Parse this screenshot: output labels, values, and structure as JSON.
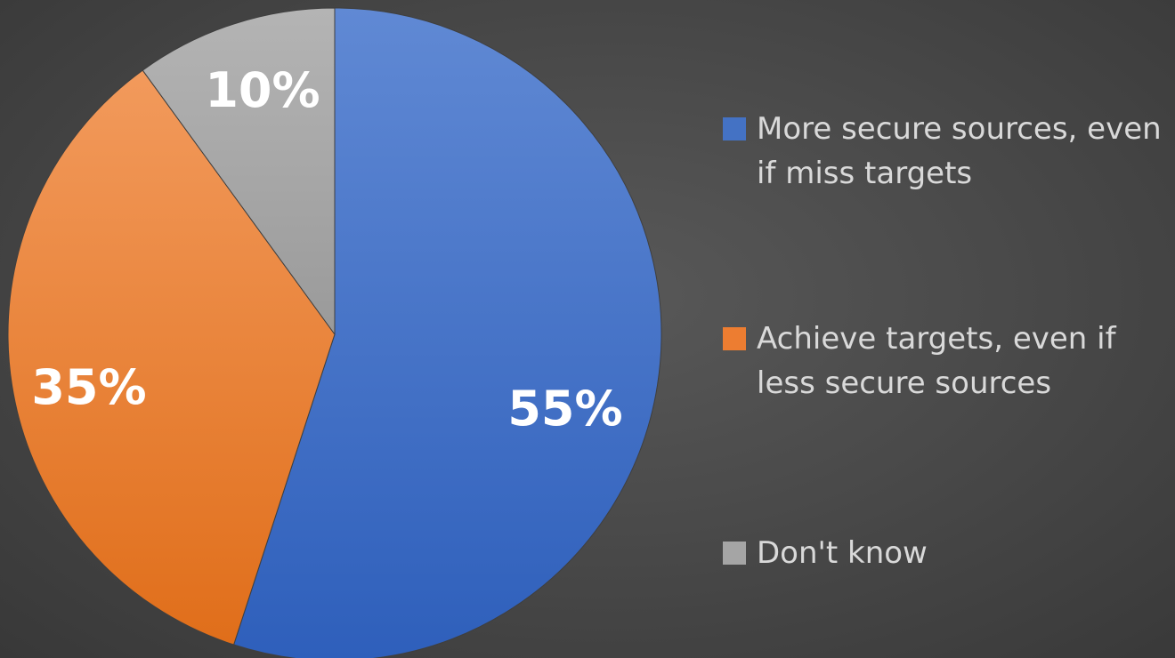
{
  "chart_data": {
    "type": "pie",
    "slices": [
      {
        "label": "More secure sources, even if miss targets",
        "value": 55,
        "display": "55%",
        "color": "#4472C4"
      },
      {
        "label": "Achieve targets, even if less secure sources",
        "value": 35,
        "display": "35%",
        "color": "#ED7D31"
      },
      {
        "label": "Don't know",
        "value": 10,
        "display": "10%",
        "color": "#A5A5A5"
      }
    ],
    "legend_position": "right",
    "start_angle": "12 o'clock",
    "direction": "clockwise"
  },
  "legend": {
    "items": [
      {
        "label": "More secure sources, even if miss targets",
        "color": "#4472C4"
      },
      {
        "label": "Achieve targets, even if less secure sources",
        "color": "#ED7D31"
      },
      {
        "label": "Don't know",
        "color": "#A5A5A5"
      }
    ]
  }
}
